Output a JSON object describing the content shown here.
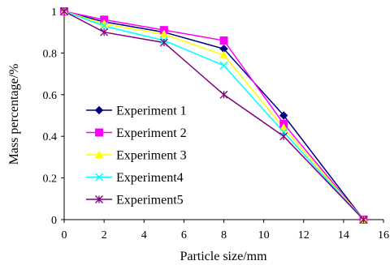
{
  "chart_data": {
    "type": "line",
    "xlabel": "Particle size/mm",
    "ylabel": "Mass percentage/%",
    "xlim": [
      0,
      16
    ],
    "ylim": [
      0,
      1
    ],
    "xticks": [
      "0",
      "2",
      "4",
      "6",
      "8",
      "10",
      "12",
      "14",
      "16"
    ],
    "yticks": [
      "0",
      "0.2",
      "0.4",
      "0.6",
      "0.8",
      "1"
    ],
    "grid": false,
    "legend_position": "left",
    "x": [
      0,
      2,
      5,
      8,
      11,
      15
    ],
    "series": [
      {
        "name": "Experiment 1",
        "color": "#000080",
        "marker": "diamond",
        "values": [
          1.0,
          0.95,
          0.9,
          0.82,
          0.5,
          0.0
        ]
      },
      {
        "name": "Experiment 2",
        "color": "#FF00FF",
        "marker": "square",
        "values": [
          1.0,
          0.96,
          0.91,
          0.86,
          0.46,
          0.0
        ]
      },
      {
        "name": "Experiment 3",
        "color": "#FFFF00",
        "marker": "triangle",
        "values": [
          1.0,
          0.94,
          0.89,
          0.79,
          0.44,
          0.0
        ]
      },
      {
        "name": "Experiment4",
        "color": "#00FFFF",
        "marker": "x",
        "values": [
          1.0,
          0.93,
          0.86,
          0.74,
          0.42,
          0.0
        ]
      },
      {
        "name": "Experiment5",
        "color": "#800080",
        "marker": "star",
        "values": [
          1.0,
          0.9,
          0.85,
          0.6,
          0.4,
          0.0
        ]
      }
    ]
  }
}
